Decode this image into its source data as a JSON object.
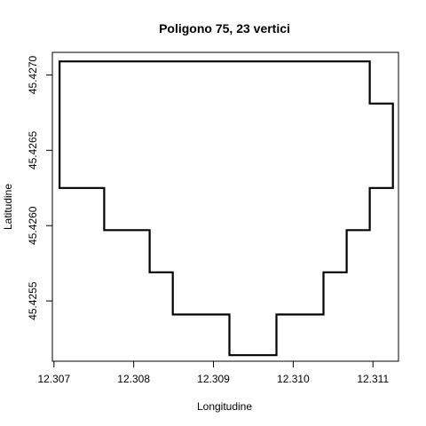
{
  "chart_data": {
    "type": "line",
    "title": "Poligono 75, 23 vertici",
    "xlabel": "Longitudine",
    "ylabel": "Latitudine",
    "xlim": [
      12.30698,
      12.31132
    ],
    "ylim": [
      45.4251,
      45.42715
    ],
    "xticks": [
      12.307,
      12.308,
      12.309,
      12.31,
      12.311
    ],
    "xtick_labels": [
      "12.307",
      "12.308",
      "12.309",
      "12.310",
      "12.311"
    ],
    "yticks": [
      45.4255,
      45.426,
      45.4265,
      45.427
    ],
    "ytick_labels": [
      "45.4255",
      "45.4260",
      "45.4265",
      "45.4270"
    ],
    "grid": false,
    "legend": "none",
    "line_color": "#000000",
    "series": [
      {
        "closed": true,
        "x": [
          12.30707,
          12.31096,
          12.31096,
          12.31125,
          12.31125,
          12.31096,
          12.31096,
          12.31067,
          12.31067,
          12.31038,
          12.31038,
          12.30979,
          12.30979,
          12.3092,
          12.3092,
          12.30849,
          12.30849,
          12.3082,
          12.3082,
          12.30763,
          12.30763,
          12.30707,
          12.30707
        ],
        "y": [
          45.42709,
          45.42709,
          45.42681,
          45.42681,
          45.42625,
          45.42625,
          45.42597,
          45.42597,
          45.42569,
          45.42569,
          45.42541,
          45.42541,
          45.42514,
          45.42514,
          45.42541,
          45.42541,
          45.42569,
          45.42569,
          45.42597,
          45.42597,
          45.42625,
          45.42625,
          45.42709
        ]
      }
    ]
  }
}
